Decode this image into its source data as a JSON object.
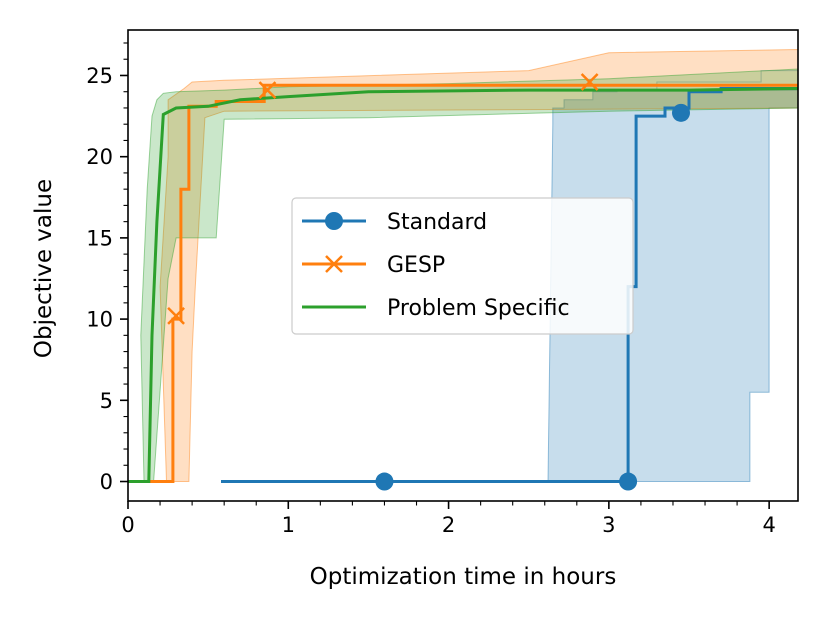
{
  "chart_data": {
    "type": "line",
    "title": "",
    "xlabel": "Optimization time in hours",
    "ylabel": "Objective value",
    "xlim": [
      0,
      4.18
    ],
    "ylim": [
      -1.2,
      27.8
    ],
    "xticks": [
      0,
      1,
      2,
      3,
      4
    ],
    "yticks": [
      0,
      5,
      10,
      15,
      20,
      25
    ],
    "grid": false,
    "legend_position": "center-right",
    "series": [
      {
        "name": "Standard",
        "color": "#1f77b4",
        "marker": "circle",
        "x": [
          0.58,
          3.12,
          3.12,
          3.17,
          3.17,
          3.35,
          3.35,
          3.5,
          3.5,
          3.7,
          3.7,
          4.18
        ],
        "y": [
          0,
          0,
          12,
          12,
          22.5,
          22.5,
          23,
          23,
          24,
          24,
          24.2,
          24.2
        ],
        "markers_x": [
          1.6,
          3.12,
          3.45
        ],
        "markers_y": [
          0,
          0,
          22.7
        ],
        "band_x": [
          2.62,
          2.65,
          2.65,
          2.72,
          2.72,
          2.9,
          2.9,
          3.05,
          3.05,
          4.18
        ],
        "band_upper": [
          0,
          22,
          23,
          23,
          23.5,
          23.5,
          24,
          24,
          24.1,
          24.1
        ],
        "band_lower_x": [
          2.62,
          3.88,
          3.88,
          4.0,
          4.0,
          4.18
        ],
        "band_lower": [
          0,
          0,
          5.5,
          5.5,
          23,
          23
        ],
        "band_upper2_x": [
          3.1,
          3.3,
          3.3,
          3.95,
          3.95,
          4.18
        ],
        "band_upper2": [
          24.1,
          24.1,
          24.6,
          24.6,
          25.3,
          25.3
        ]
      },
      {
        "name": "GESP",
        "color": "#ff7f0e",
        "marker": "x",
        "x": [
          0,
          0.28,
          0.28,
          0.33,
          0.33,
          0.38,
          0.38,
          0.55,
          0.55,
          0.85,
          0.85,
          4.18
        ],
        "y": [
          0,
          0,
          10,
          10,
          18,
          18,
          23.1,
          23.1,
          23.4,
          23.4,
          24.4,
          24.4
        ],
        "markers_x": [
          0.3,
          0.87,
          2.88
        ],
        "markers_y": [
          10.2,
          24.1,
          24.6
        ],
        "band_x": [
          0.2,
          0.25,
          0.25,
          0.35,
          0.4,
          0.6,
          2.5,
          3.0,
          4.18
        ],
        "band_upper": [
          12,
          20,
          23.5,
          24.2,
          24.6,
          24.7,
          25.3,
          26.4,
          26.6
        ],
        "band_lower_x": [
          0.24,
          0.38,
          0.4,
          0.42,
          0.48,
          0.6,
          2.5,
          4.18
        ],
        "band_lower": [
          0,
          0,
          8,
          12,
          22.4,
          22.8,
          22.9,
          23.0
        ]
      },
      {
        "name": "Problem Specific",
        "color": "#2ca02c",
        "marker": "none",
        "x": [
          0,
          0.13,
          0.15,
          0.18,
          0.22,
          0.3,
          0.5,
          0.7,
          1.0,
          1.5,
          2.5,
          3.5,
          4.18
        ],
        "y": [
          0,
          0,
          9,
          16,
          22.6,
          23.0,
          23.1,
          23.5,
          23.7,
          24.0,
          24.1,
          24.1,
          24.2
        ],
        "band_x": [
          0.08,
          0.12,
          0.15,
          0.18,
          0.22,
          0.3,
          0.6,
          1.0,
          2.0,
          3.0,
          4.18
        ],
        "band_upper": [
          9,
          18,
          22.5,
          23.5,
          23.9,
          24.0,
          24.1,
          24.3,
          24.5,
          24.8,
          25.4
        ],
        "band_lower_x": [
          0.1,
          0.12,
          0.16,
          0.25,
          0.3,
          0.4,
          0.55,
          0.6,
          1.5,
          3.0,
          4.18
        ],
        "band_lower": [
          0,
          0,
          0,
          12.5,
          15,
          15,
          15,
          22.3,
          22.4,
          22.8,
          23.0
        ]
      }
    ]
  }
}
